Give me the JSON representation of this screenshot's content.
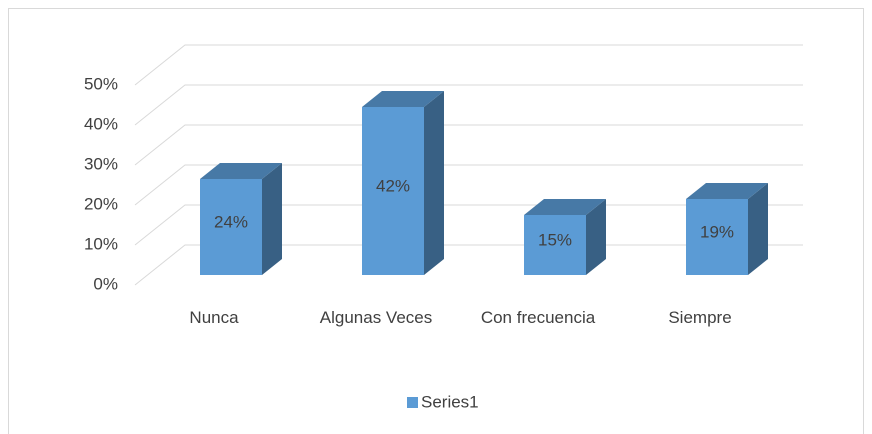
{
  "chart_data": {
    "type": "bar3d",
    "categories": [
      "Nunca",
      "Algunas Veces",
      "Con frecuencia",
      "Siempre"
    ],
    "series": [
      {
        "name": "Series1",
        "color": "#5b9bd5",
        "values": [
          24,
          42,
          15,
          19
        ],
        "value_labels": [
          "24%",
          "42%",
          "15%",
          "19%"
        ]
      }
    ],
    "ylim": [
      0,
      50
    ],
    "yticks": [
      {
        "value": 0,
        "label": "0%"
      },
      {
        "value": 10,
        "label": "10%"
      },
      {
        "value": 20,
        "label": "20%"
      },
      {
        "value": 30,
        "label": "30%"
      },
      {
        "value": 40,
        "label": "40%"
      },
      {
        "value": 50,
        "label": "50%"
      }
    ],
    "grid": true,
    "legend": "bottom"
  }
}
